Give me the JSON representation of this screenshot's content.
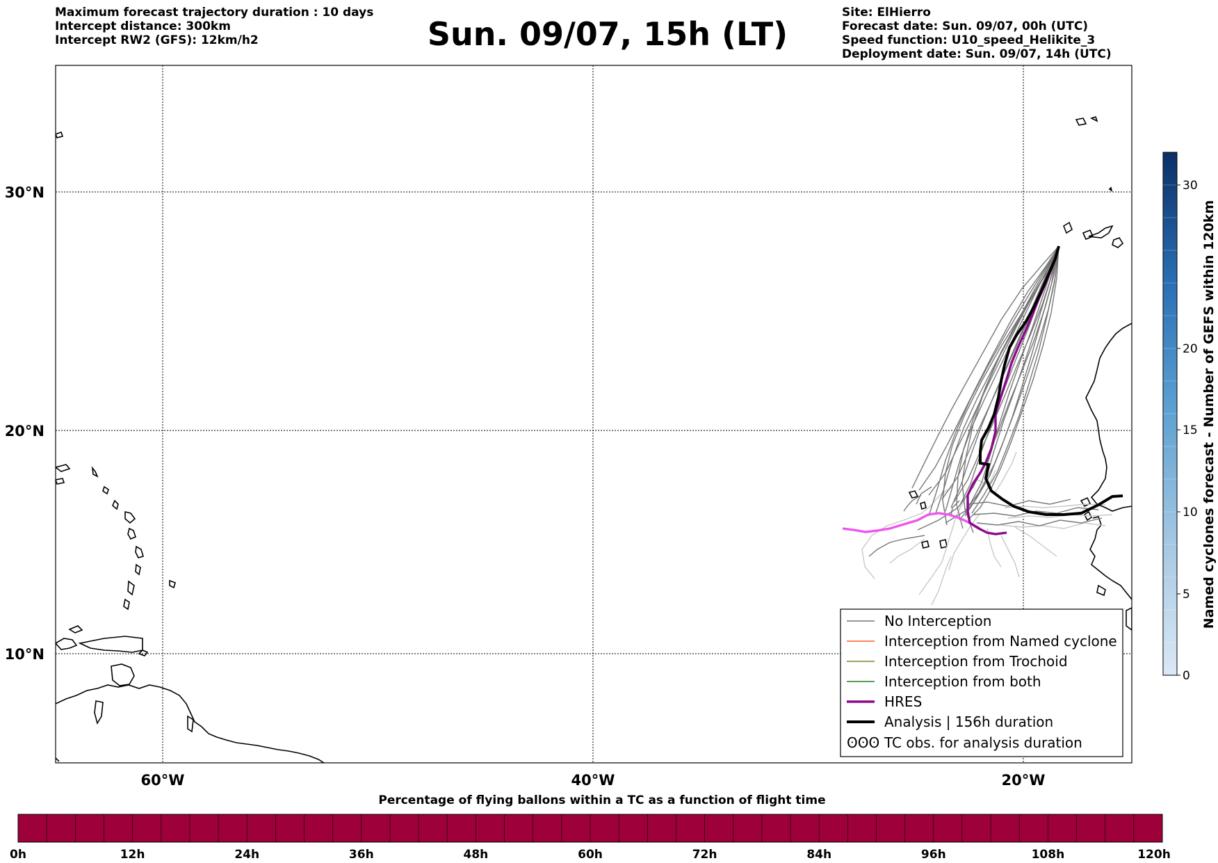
{
  "header_left": {
    "line1": "Maximum forecast trajectory duration : 10 days",
    "line2": "Intercept distance: 300km",
    "line3": "Intercept RW2 (GFS):  12km/h2"
  },
  "title": "Sun. 09/07, 15h (LT)",
  "header_right": {
    "line1": "Site: ElHierro",
    "line2": "Forecast date: Sun. 09/07, 00h (UTC)",
    "line3": "Speed function: U10_speed_Helikite_3",
    "line4": "Deployment date: Sun. 09/07, 14h (UTC)"
  },
  "map": {
    "lat_labels": [
      "30°N",
      "20°N",
      "10°N"
    ],
    "lon_labels": [
      "60°W",
      "40°W",
      "20°W"
    ],
    "colors": {
      "no_interception": "#777777",
      "named_cyclone": "#ff5a1e",
      "trochoid": "#808020",
      "both": "#208020",
      "hres": "#8b0a8b",
      "analysis": "#000000",
      "light_tracks": "#c8c8c8",
      "pink_track": "#ee55ee"
    }
  },
  "legend": {
    "items": [
      {
        "label": "No Interception",
        "color": "#777777"
      },
      {
        "label": "Interception from Named cyclone",
        "color": "#ff5a1e"
      },
      {
        "label": "Interception from Trochoid",
        "color": "#808020"
      },
      {
        "label": "Interception from both",
        "color": "#208020"
      },
      {
        "label": "HRES",
        "color": "#8b0a8b"
      },
      {
        "label": "Analysis | 156h duration",
        "color": "#000000"
      },
      {
        "label": "TC obs. for analysis duration",
        "symbol": "ʘʘʘ"
      }
    ]
  },
  "colorbar": {
    "label": "Named cyclones forecast - Number of GEFS within 120km",
    "ticks": [
      "0",
      "5",
      "10",
      "15",
      "20",
      "30"
    ]
  },
  "bottom_bar": {
    "title": "Percentage of flying ballons within a TC as a function of flight time",
    "color": "#9e003a",
    "ticks": [
      "0h",
      "12h",
      "24h",
      "36h",
      "48h",
      "60h",
      "72h",
      "84h",
      "96h",
      "108h",
      "120h"
    ]
  }
}
